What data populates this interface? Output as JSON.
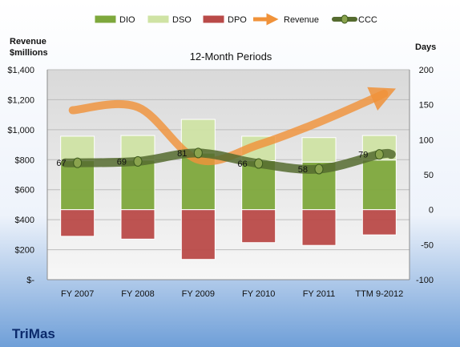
{
  "chart_data": {
    "type": "bar",
    "company": "TriMas",
    "title": "12-Month Periods",
    "left_axis_title_line1": "Revenue",
    "left_axis_title_line2": "$millions",
    "right_axis_title": "Days",
    "categories": [
      "FY 2007",
      "FY 2008",
      "FY 2009",
      "FY 2010",
      "FY 2011",
      "TTM 9-2012"
    ],
    "left_ylim": [
      0,
      1400
    ],
    "left_ticks": [
      0,
      200,
      400,
      600,
      800,
      1000,
      1200,
      1400
    ],
    "left_tick_labels": [
      "$-",
      "$200",
      "$400",
      "$600",
      "$800",
      "$1,000",
      "$1,200",
      "$1,400"
    ],
    "right_ylim": [
      -100,
      200
    ],
    "right_ticks": [
      -100,
      -50,
      0,
      50,
      100,
      150,
      200
    ],
    "right_tick_labels": [
      "-100",
      "-50",
      "0",
      "50",
      "100",
      "150",
      "200"
    ],
    "grid": true,
    "legend_position": "top",
    "stacked_series": [
      {
        "name": "DIO",
        "axis": "right",
        "values": [
          70,
          71,
          81,
          70,
          68,
          71
        ],
        "color": "#7ea83c"
      },
      {
        "name": "DSO",
        "axis": "right",
        "values": [
          35,
          35,
          48,
          35,
          35,
          35
        ],
        "color": "#cfe3a4"
      },
      {
        "name": "DPO",
        "axis": "right",
        "values": [
          -38,
          -42,
          -71,
          -47,
          -51,
          -36
        ],
        "color": "#b94a48"
      }
    ],
    "series": [
      {
        "name": "Revenue",
        "axis": "left",
        "type": "line",
        "values": [
          1130,
          1150,
          800,
          900,
          1050,
          1240
        ],
        "color": "#f0923a"
      },
      {
        "name": "CCC",
        "axis": "right",
        "type": "line",
        "values": [
          67,
          69,
          81,
          66,
          58,
          79
        ],
        "labels": [
          "67",
          "69",
          "81",
          "66",
          "58",
          "79"
        ],
        "color": "#556b2f"
      }
    ],
    "legend": [
      {
        "name": "DIO",
        "kind": "box",
        "color": "#7ea83c"
      },
      {
        "name": "DSO",
        "kind": "box",
        "color": "#cfe3a4"
      },
      {
        "name": "DPO",
        "kind": "box",
        "color": "#b94a48"
      },
      {
        "name": "Revenue",
        "kind": "arrow",
        "color": "#f0923a"
      },
      {
        "name": "CCC",
        "kind": "line-marker",
        "color": "#556b2f"
      }
    ]
  }
}
